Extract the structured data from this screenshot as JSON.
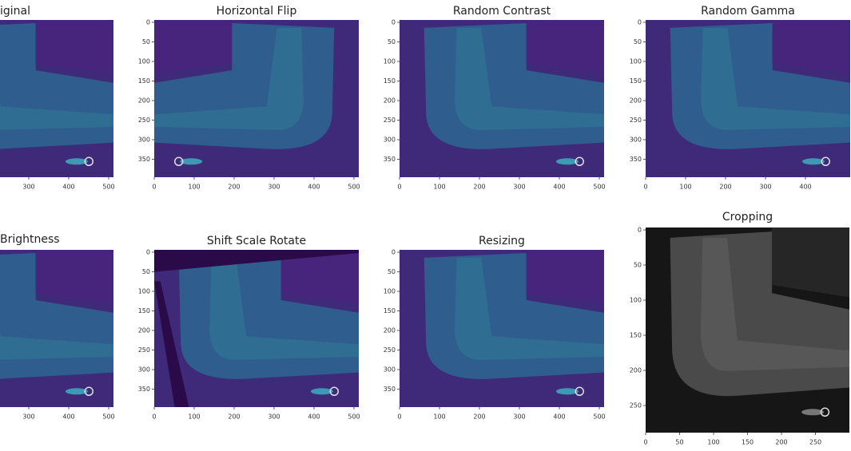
{
  "panels": [
    {
      "title": "iginal",
      "xticks": [
        300,
        400,
        500
      ],
      "yticks": []
    },
    {
      "title": "Horizontal Flip",
      "xticks": [
        0,
        100,
        200,
        300,
        400,
        500
      ],
      "yticks": [
        0,
        50,
        100,
        150,
        200,
        250,
        300,
        350
      ]
    },
    {
      "title": "Random Contrast",
      "xticks": [
        0,
        100,
        200,
        300,
        400,
        500
      ],
      "yticks": [
        0,
        50,
        100,
        150,
        200,
        250,
        300,
        350
      ]
    },
    {
      "title": "Random Gamma",
      "xticks": [
        0,
        100,
        200,
        300,
        400
      ],
      "yticks": [
        0,
        50,
        100,
        150,
        200,
        250,
        300,
        350
      ]
    },
    {
      "title": "Brightness",
      "xticks": [
        300,
        400,
        500
      ],
      "yticks": []
    },
    {
      "title": "Shift Scale Rotate",
      "xticks": [
        0,
        100,
        200,
        300,
        400,
        500
      ],
      "yticks": [
        0,
        50,
        100,
        150,
        200,
        250,
        300,
        350
      ]
    },
    {
      "title": "Resizing",
      "xticks": [
        0,
        100,
        200,
        300,
        400,
        500
      ],
      "yticks": [
        0,
        50,
        100,
        150,
        200,
        250,
        300,
        350
      ]
    },
    {
      "title": "Cropping",
      "xticks": [
        0,
        50,
        100,
        150,
        200,
        250
      ],
      "yticks": [
        0,
        50,
        100,
        150,
        200,
        250
      ]
    }
  ]
}
